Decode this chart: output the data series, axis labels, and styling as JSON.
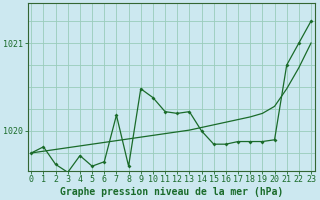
{
  "title": "Graphe pression niveau de la mer (hPa)",
  "background_color": "#cce8f0",
  "grid_color": "#99ccbb",
  "line_color": "#1a6b2a",
  "spine_color": "#336633",
  "x_ticks": [
    0,
    1,
    2,
    3,
    4,
    5,
    6,
    7,
    8,
    9,
    10,
    11,
    12,
    13,
    14,
    15,
    16,
    17,
    18,
    19,
    20,
    21,
    22,
    23
  ],
  "y_ticks": [
    1020,
    1021
  ],
  "ylim": [
    1019.55,
    1021.45
  ],
  "xlim": [
    -0.3,
    23.3
  ],
  "jagged_x": [
    0,
    1,
    2,
    3,
    4,
    5,
    6,
    7,
    8,
    9,
    10,
    11,
    12,
    13,
    14,
    15,
    16,
    17,
    18,
    19,
    20,
    21,
    22,
    23
  ],
  "jagged_y": [
    1019.75,
    1019.82,
    1019.62,
    1019.53,
    1019.72,
    1019.6,
    1019.65,
    1020.18,
    1019.6,
    1020.48,
    1020.38,
    1020.22,
    1020.2,
    1020.22,
    1020.0,
    1019.85,
    1019.85,
    1019.88,
    1019.88,
    1019.88,
    1019.9,
    1020.75,
    1021.0,
    1021.25
  ],
  "smooth_x": [
    0,
    1,
    2,
    3,
    4,
    5,
    6,
    7,
    8,
    9,
    10,
    11,
    12,
    13,
    14,
    15,
    16,
    17,
    18,
    19,
    20,
    21,
    22,
    23
  ],
  "smooth_y": [
    1019.75,
    1019.77,
    1019.79,
    1019.81,
    1019.83,
    1019.85,
    1019.87,
    1019.89,
    1019.91,
    1019.93,
    1019.95,
    1019.97,
    1019.99,
    1020.01,
    1020.04,
    1020.07,
    1020.1,
    1020.13,
    1020.16,
    1020.2,
    1020.28,
    1020.48,
    1020.72,
    1021.0
  ],
  "tick_fontsize": 6,
  "label_fontsize": 7
}
